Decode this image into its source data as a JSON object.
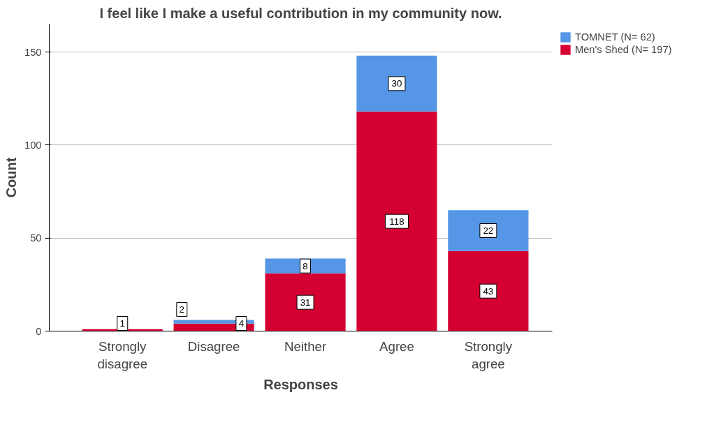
{
  "chart_data": {
    "type": "bar",
    "title": "I feel like I make a useful contribution in my community now.",
    "xlabel": "Responses",
    "ylabel": "Count",
    "categories": [
      "Strongly\ndisagree",
      "Disagree",
      "Neither",
      "Agree",
      "Strongly\nagree"
    ],
    "stacked": true,
    "series": [
      {
        "name": "Men's Shed (N= 197)",
        "color": "#d50032",
        "values": [
          1,
          4,
          31,
          118,
          43
        ],
        "value_labels": [
          "1",
          "4",
          "31",
          "118",
          "43"
        ]
      },
      {
        "name": "TOMNET (N= 62)",
        "color": "#5597e6",
        "values": [
          0,
          2,
          8,
          30,
          22
        ],
        "value_labels": [
          null,
          "2",
          "8",
          "30",
          "22"
        ]
      }
    ],
    "ylim": [
      0,
      165
    ],
    "yticks": [
      0,
      50,
      100,
      150
    ],
    "grid": "y",
    "legend": "top right"
  }
}
